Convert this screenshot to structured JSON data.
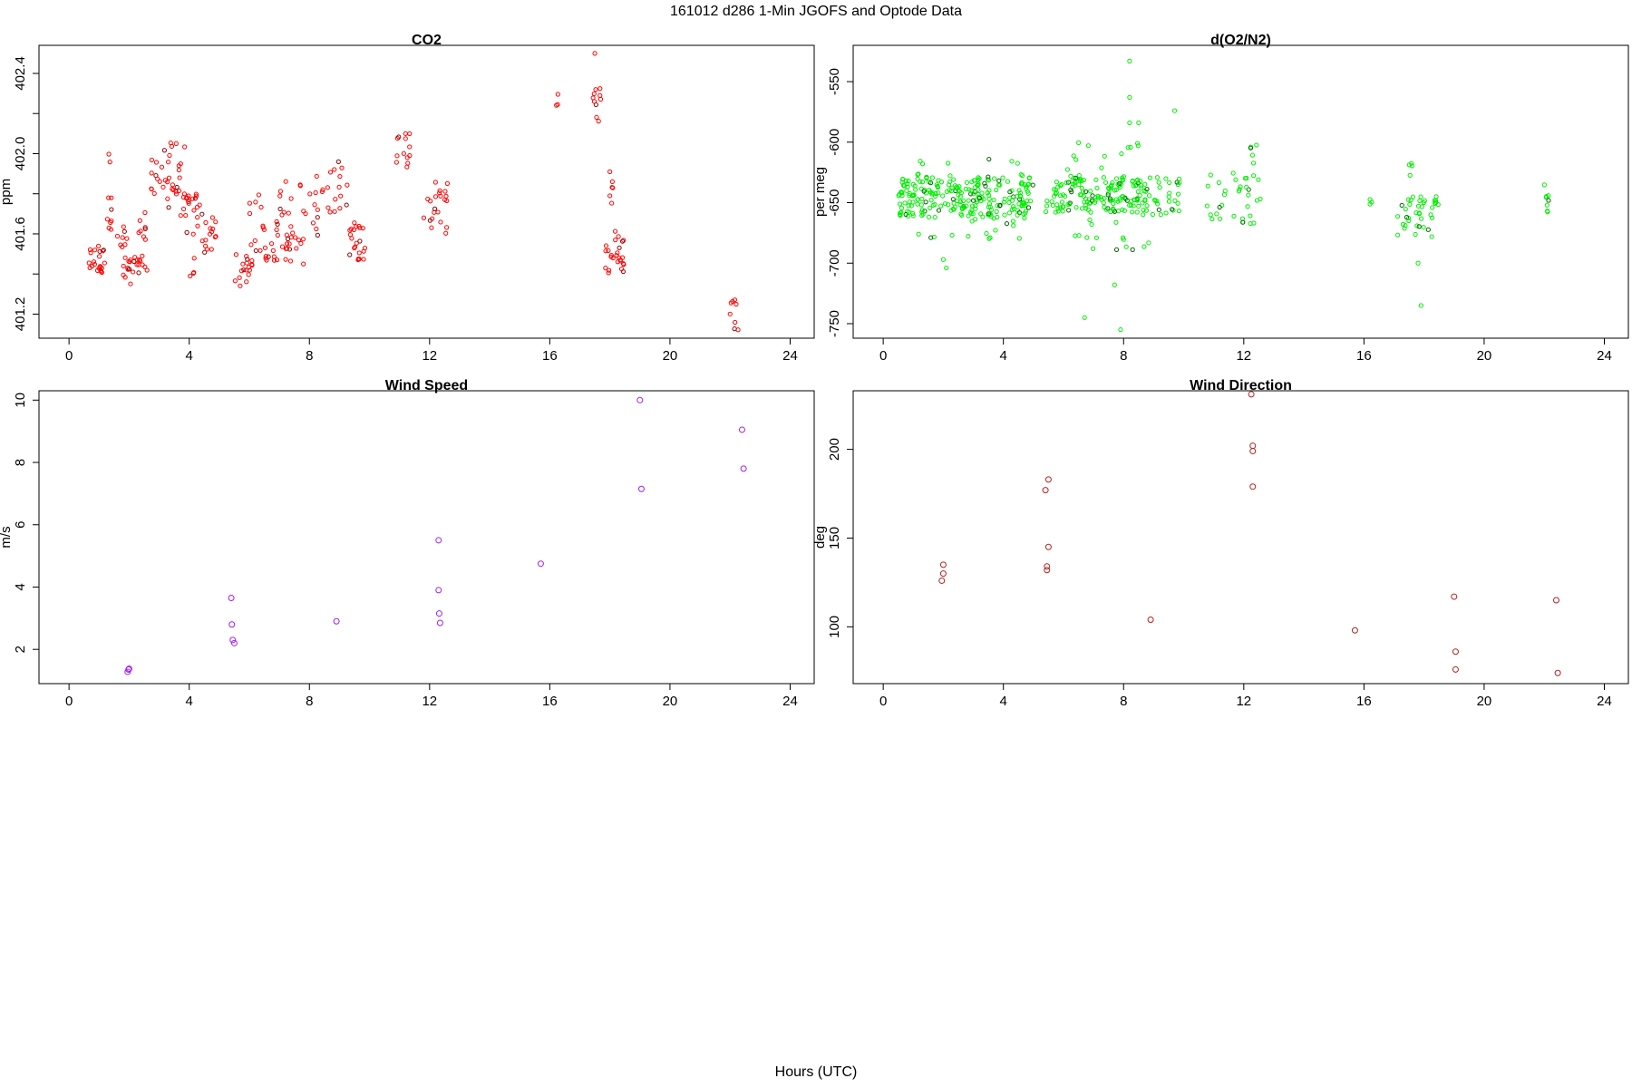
{
  "figure": {
    "title": "161012   d286   1-Min  JGOFS and Optode Data",
    "xlabel": "Hours (UTC)"
  },
  "chart_data": [
    {
      "type": "scatter",
      "title": "CO2",
      "xlabel": "",
      "ylabel": "ppm",
      "xlim": [
        -1,
        24.8
      ],
      "ylim": [
        401.08,
        402.54
      ],
      "xticks": [
        0,
        4,
        8,
        12,
        16,
        20,
        24
      ],
      "yticks": [
        401.2,
        401.6,
        402.0,
        402.4
      ],
      "yticks_unlabeled": [
        401.4,
        401.8,
        402.2
      ],
      "ytick_labels": [
        "401.2",
        "401.6",
        "402.0",
        "402.4"
      ],
      "colors": {
        "points": "#ff0000",
        "dark_points": "#8b0000"
      },
      "clusters": [
        {
          "x": [
            0.6,
            1.2
          ],
          "y": [
            401.38,
            401.54
          ],
          "n": 22
        },
        {
          "x": [
            1.2,
            1.5
          ],
          "y": [
            401.62,
            402.02
          ],
          "n": 10
        },
        {
          "x": [
            1.6,
            2.0
          ],
          "y": [
            401.5,
            401.66
          ],
          "n": 8
        },
        {
          "x": [
            1.8,
            2.6
          ],
          "y": [
            401.35,
            401.49
          ],
          "n": 24
        },
        {
          "x": [
            2.2,
            2.7
          ],
          "y": [
            401.55,
            401.72
          ],
          "n": 8
        },
        {
          "x": [
            2.7,
            3.1
          ],
          "y": [
            401.8,
            401.99
          ],
          "n": 10
        },
        {
          "x": [
            3.1,
            3.9
          ],
          "y": [
            401.68,
            402.06
          ],
          "n": 28
        },
        {
          "x": [
            3.8,
            4.4
          ],
          "y": [
            401.58,
            401.8
          ],
          "n": 18
        },
        {
          "x": [
            4.0,
            4.2
          ],
          "y": [
            401.38,
            401.5
          ],
          "n": 4
        },
        {
          "x": [
            4.4,
            5.0
          ],
          "y": [
            401.5,
            401.7
          ],
          "n": 16
        },
        {
          "x": [
            5.5,
            6.1
          ],
          "y": [
            401.34,
            401.5
          ],
          "n": 18
        },
        {
          "x": [
            6.0,
            6.5
          ],
          "y": [
            401.5,
            401.8
          ],
          "n": 12
        },
        {
          "x": [
            6.5,
            7.0
          ],
          "y": [
            401.46,
            401.56
          ],
          "n": 10
        },
        {
          "x": [
            6.9,
            7.5
          ],
          "y": [
            401.58,
            401.88
          ],
          "n": 14
        },
        {
          "x": [
            7.0,
            7.7
          ],
          "y": [
            401.46,
            401.6
          ],
          "n": 14
        },
        {
          "x": [
            7.6,
            8.3
          ],
          "y": [
            401.55,
            401.9
          ],
          "n": 14
        },
        {
          "x": [
            8.2,
            9.3
          ],
          "y": [
            401.7,
            401.98
          ],
          "n": 18
        },
        {
          "x": [
            9.3,
            9.9
          ],
          "y": [
            401.47,
            401.66
          ],
          "n": 22
        },
        {
          "x": [
            10.8,
            11.4
          ],
          "y": [
            401.93,
            402.1
          ],
          "n": 12
        },
        {
          "x": [
            11.8,
            12.6
          ],
          "y": [
            401.6,
            401.86
          ],
          "n": 22
        },
        {
          "x": [
            16.2,
            16.3
          ],
          "y": [
            402.21,
            402.3
          ],
          "n": 3
        },
        {
          "x": [
            17.4,
            17.7
          ],
          "y": [
            402.15,
            402.34
          ],
          "n": 10
        },
        {
          "x": [
            17.8,
            18.5
          ],
          "y": [
            401.4,
            401.62
          ],
          "n": 26
        },
        {
          "x": [
            17.9,
            18.1
          ],
          "y": [
            401.65,
            401.9
          ],
          "n": 4
        },
        {
          "x": [
            22.0,
            22.3
          ],
          "y": [
            401.12,
            401.29
          ],
          "n": 8
        }
      ],
      "points": [
        [
          17.5,
          402.5
        ],
        [
          18.0,
          401.91
        ],
        [
          18.0,
          401.79
        ],
        [
          11.2,
          402.1
        ],
        [
          7.8,
          401.45
        ]
      ]
    },
    {
      "type": "scatter",
      "title": "d(O2/N2)",
      "xlabel": "",
      "ylabel": "per meg",
      "xlim": [
        -1,
        24.8
      ],
      "ylim": [
        -762,
        -520
      ],
      "xticks": [
        0,
        4,
        8,
        12,
        16,
        20,
        24
      ],
      "yticks": [
        -750,
        -700,
        -650,
        -600,
        -550
      ],
      "ytick_labels": [
        "-750",
        "-700",
        "-650",
        "-600",
        "-550"
      ],
      "colors": {
        "points": "#00ee00",
        "dark_points": "#006400"
      },
      "clusters": [
        {
          "x": [
            0.5,
            5.0
          ],
          "y": [
            -662,
            -628
          ],
          "n": 230
        },
        {
          "x": [
            1.0,
            5.0
          ],
          "y": [
            -680,
            -612
          ],
          "n": 45
        },
        {
          "x": [
            5.4,
            8.5
          ],
          "y": [
            -658,
            -628
          ],
          "n": 140
        },
        {
          "x": [
            6.0,
            9.0
          ],
          "y": [
            -690,
            -600
          ],
          "n": 40
        },
        {
          "x": [
            8.5,
            9.9
          ],
          "y": [
            -660,
            -628
          ],
          "n": 40
        },
        {
          "x": [
            10.7,
            11.4
          ],
          "y": [
            -665,
            -625
          ],
          "n": 12
        },
        {
          "x": [
            11.6,
            12.6
          ],
          "y": [
            -668,
            -625
          ],
          "n": 22
        },
        {
          "x": [
            12.2,
            12.6
          ],
          "y": [
            -625,
            -584
          ],
          "n": 5
        },
        {
          "x": [
            16.2,
            16.3
          ],
          "y": [
            -655,
            -642
          ],
          "n": 3
        },
        {
          "x": [
            17.1,
            18.5
          ],
          "y": [
            -680,
            -643
          ],
          "n": 40
        },
        {
          "x": [
            17.5,
            17.6
          ],
          "y": [
            -643,
            -612
          ],
          "n": 4
        },
        {
          "x": [
            22.0,
            22.2
          ],
          "y": [
            -658,
            -632
          ],
          "n": 8
        }
      ],
      "points": [
        [
          8.2,
          -533
        ],
        [
          8.2,
          -563
        ],
        [
          8.2,
          -584
        ],
        [
          6.7,
          -745
        ],
        [
          7.9,
          -755
        ],
        [
          7.7,
          -718
        ],
        [
          2.1,
          -704
        ],
        [
          17.9,
          -735
        ],
        [
          17.8,
          -700
        ],
        [
          2.0,
          -697
        ],
        [
          9.7,
          -574
        ],
        [
          8.5,
          -584
        ]
      ]
    },
    {
      "type": "scatter",
      "title": "Wind Speed",
      "xlabel": "",
      "ylabel": "m/s",
      "xlim": [
        -1,
        24.8
      ],
      "ylim": [
        0.9,
        10.3
      ],
      "xticks": [
        0,
        4,
        8,
        12,
        16,
        20,
        24
      ],
      "yticks": [
        2,
        4,
        6,
        8,
        10
      ],
      "ytick_labels": [
        "2",
        "4",
        "6",
        "8",
        "10"
      ],
      "colors": {
        "points": "#a020f0"
      },
      "x": [
        1.95,
        1.98,
        2.0,
        5.4,
        5.42,
        5.45,
        5.5,
        8.9,
        12.3,
        12.3,
        12.32,
        12.35,
        15.7,
        19.0,
        19.05,
        22.4,
        22.45
      ],
      "y": [
        1.28,
        1.35,
        1.38,
        3.65,
        2.8,
        2.3,
        2.2,
        2.9,
        5.5,
        3.9,
        3.15,
        2.85,
        4.75,
        10.0,
        7.15,
        9.05,
        7.8
      ]
    },
    {
      "type": "scatter",
      "title": "Wind Direction",
      "xlabel": "",
      "ylabel": "deg",
      "xlim": [
        -1,
        24.8
      ],
      "ylim": [
        68,
        233
      ],
      "xticks": [
        0,
        4,
        8,
        12,
        16,
        20,
        24
      ],
      "yticks": [
        100,
        150,
        200
      ],
      "ytick_labels": [
        "100",
        "150",
        "200"
      ],
      "colors": {
        "points": "#b22222"
      },
      "x": [
        1.95,
        2.0,
        2.0,
        5.4,
        5.45,
        5.45,
        5.5,
        5.5,
        8.9,
        12.25,
        12.3,
        12.3,
        12.3,
        15.7,
        19.0,
        19.05,
        19.05,
        22.4,
        22.45
      ],
      "y": [
        126,
        130,
        135,
        177,
        134,
        132,
        145,
        183,
        104,
        231,
        202,
        199,
        179,
        98,
        117,
        86,
        76,
        115,
        74
      ]
    }
  ]
}
